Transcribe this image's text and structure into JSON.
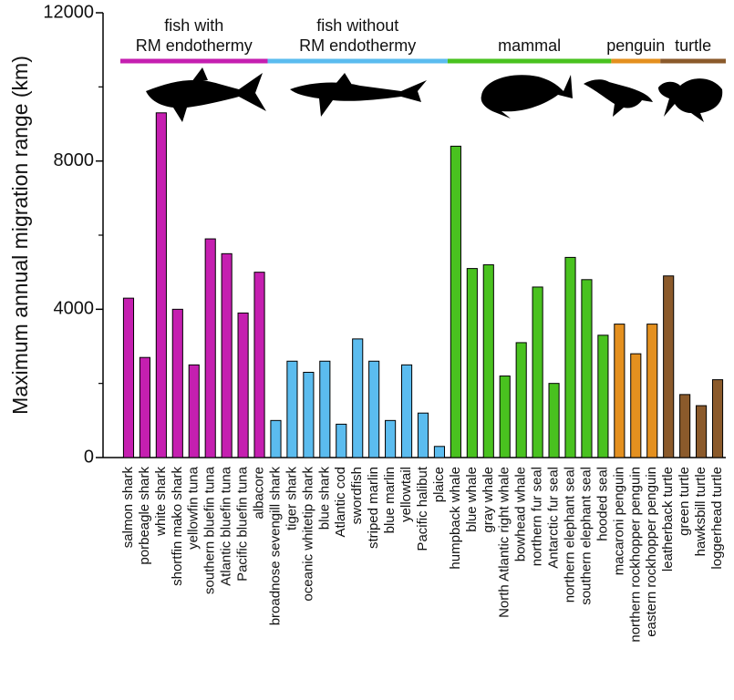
{
  "chart_data": {
    "type": "bar",
    "y_label": "Maximum annual migration range (km)",
    "categories": [
      "salmon shark",
      "porbeagle shark",
      "white shark",
      "shortfin mako shark",
      "yellowfin tuna",
      "southern bluefin tuna",
      "Atlantic bluefin tuna",
      "Pacific bluefin tuna",
      "albacore",
      "broadnose sevengill shark",
      "tiger shark",
      "oceanic whitetip shark",
      "blue shark",
      "Atlantic cod",
      "swordfish",
      "striped marlin",
      "blue marlin",
      "yellowtail",
      "Pacific halibut",
      "plaice",
      "humpback whale",
      "blue whale",
      "gray whale",
      "North Atlantic right whale",
      "bowhead whale",
      "northern fur seal",
      "Antarctic fur seal",
      "northern elephant seal",
      "southern elephant seal",
      "hooded seal",
      "macaroni penguin",
      "northern rockhopper penguin",
      "eastern rockhopper penguin",
      "leatherback turtle",
      "green turtle",
      "hawksbill turtle",
      "loggerhead turtle"
    ],
    "series": [
      {
        "name": [
          "fish with",
          "RM endothermy"
        ],
        "color": "#c51fb0",
        "values": [
          4300,
          2700,
          9300,
          4000,
          2500,
          5900,
          5500,
          3900,
          5000,
          null,
          null,
          null,
          null,
          null,
          null,
          null,
          null,
          null,
          null,
          null,
          null,
          null,
          null,
          null,
          null,
          null,
          null,
          null,
          null,
          null,
          null,
          null,
          null,
          null,
          null,
          null,
          null
        ]
      },
      {
        "name": [
          "fish without",
          "RM endothermy"
        ],
        "color": "#5bbcef",
        "values": [
          null,
          null,
          null,
          null,
          null,
          null,
          null,
          null,
          null,
          1000,
          2600,
          2300,
          2600,
          900,
          3200,
          2600,
          1000,
          2500,
          1200,
          300,
          null,
          null,
          null,
          null,
          null,
          null,
          null,
          null,
          null,
          null,
          null,
          null,
          null,
          null,
          null,
          null,
          null
        ]
      },
      {
        "name": [
          "mammal"
        ],
        "color": "#49c21f",
        "values": [
          null,
          null,
          null,
          null,
          null,
          null,
          null,
          null,
          null,
          null,
          null,
          null,
          null,
          null,
          null,
          null,
          null,
          null,
          null,
          null,
          8400,
          5100,
          5200,
          2200,
          3100,
          4600,
          2000,
          5400,
          4800,
          3300,
          null,
          null,
          null,
          null,
          null,
          null,
          null
        ]
      },
      {
        "name": [
          "penguin"
        ],
        "color": "#e4901f",
        "values": [
          null,
          null,
          null,
          null,
          null,
          null,
          null,
          null,
          null,
          null,
          null,
          null,
          null,
          null,
          null,
          null,
          null,
          null,
          null,
          null,
          null,
          null,
          null,
          null,
          null,
          null,
          null,
          null,
          null,
          null,
          3600,
          2800,
          3600,
          null,
          null,
          null,
          null
        ]
      },
      {
        "name": [
          "turtle"
        ],
        "color": "#8b5a2b",
        "values": [
          null,
          null,
          null,
          null,
          null,
          null,
          null,
          null,
          null,
          null,
          null,
          null,
          null,
          null,
          null,
          null,
          null,
          null,
          null,
          null,
          null,
          null,
          null,
          null,
          null,
          null,
          null,
          null,
          null,
          null,
          null,
          null,
          null,
          4900,
          1700,
          1400,
          2100
        ]
      }
    ],
    "ylim": [
      0,
      12000
    ],
    "yticks": [
      0,
      4000,
      8000,
      12000
    ],
    "minor_yticks": [
      2000,
      6000,
      10000
    ]
  }
}
